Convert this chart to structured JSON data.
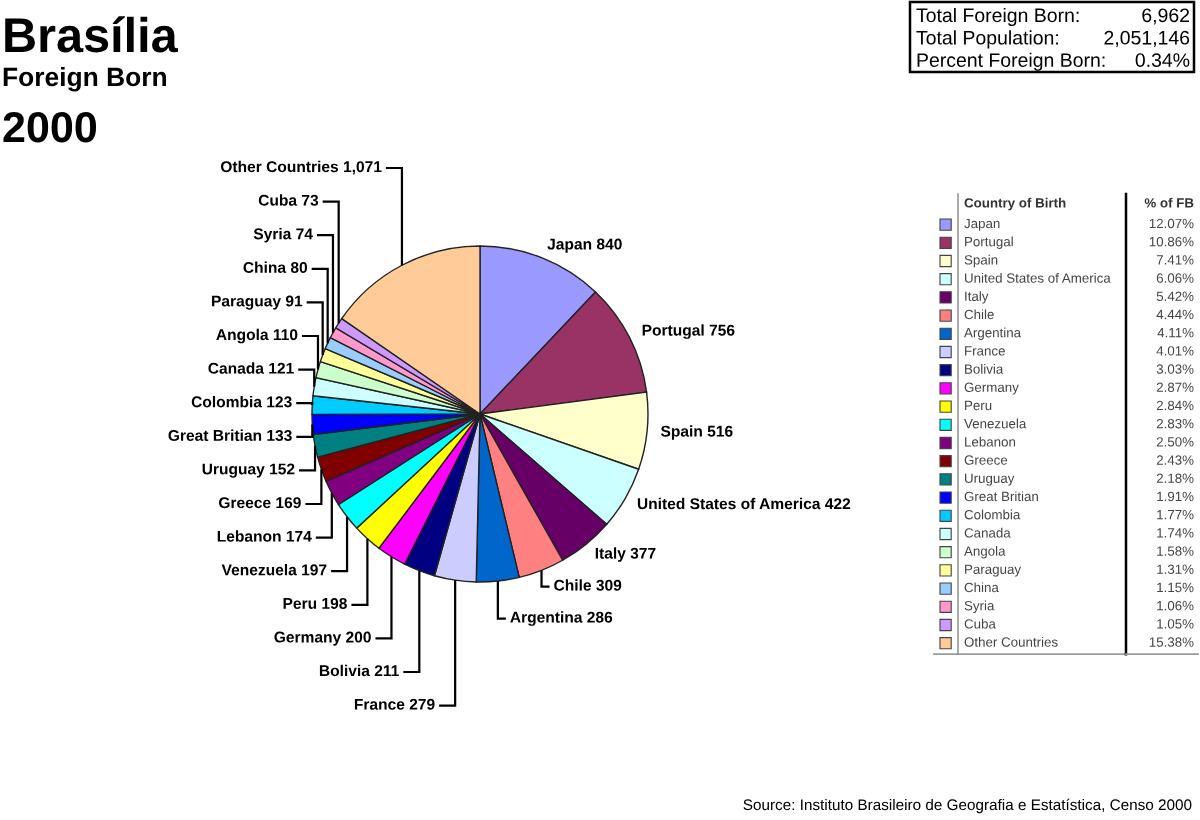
{
  "chart_data": [
    {
      "type": "pie",
      "title": "Brasília",
      "subtitle": "Foreign Born",
      "annotations": [
        "2000",
        "Total Foreign Born: 6,962",
        "Total Population: 2,051,146",
        "Percent Foreign Born: 0.34%",
        "Source: Instituto Brasileiro de Geografia e Estatística, Censo 2000"
      ],
      "categories": [
        "Japan",
        "Portugal",
        "Spain",
        "United States of America",
        "Italy",
        "Chile",
        "Argentina",
        "France",
        "Bolivia",
        "Germany",
        "Peru",
        "Venezuela",
        "Lebanon",
        "Greece",
        "Uruguay",
        "Great Britian",
        "Colombia",
        "Canada",
        "Angola",
        "Paraguay",
        "China",
        "Syria",
        "Cuba",
        "Other Countries"
      ],
      "values": [
        840,
        756,
        516,
        422,
        377,
        309,
        286,
        279,
        211,
        200,
        198,
        197,
        174,
        169,
        152,
        133,
        123,
        121,
        110,
        91,
        80,
        74,
        73,
        1071
      ],
      "value_labels": [
        "840",
        "756",
        "516",
        "422",
        "377",
        "309",
        "286",
        "279",
        "211",
        "200",
        "198",
        "197",
        "174",
        "169",
        "152",
        "133",
        "123",
        "121",
        "110",
        "91",
        "80",
        "74",
        "73",
        "1,071"
      ],
      "colors": [
        "#9999ff",
        "#993366",
        "#ffffcc",
        "#ccffff",
        "#660066",
        "#ff8080",
        "#0066cc",
        "#ccccff",
        "#000080",
        "#ff00ff",
        "#ffff00",
        "#00ffff",
        "#800080",
        "#800000",
        "#008080",
        "#0000ff",
        "#00ccff",
        "#ccffff",
        "#ccffcc",
        "#ffff99",
        "#99ccff",
        "#ff99cc",
        "#cc99ff",
        "#ffcc99"
      ],
      "legend": "right",
      "legend_title": "Country of Birth"
    },
    {
      "type": "other",
      "title": "% of FB",
      "annotations": [
        "12.07%",
        "10.86%",
        "7.41%",
        "6.06%",
        "5.42%",
        "4.44%",
        "4.11%",
        "4.01%",
        "3.03%",
        "2.87%",
        "2.84%",
        "2.83%",
        "2.50%",
        "2.43%",
        "2.18%",
        "1.91%",
        "1.77%",
        "1.74%",
        "1.58%",
        "1.31%",
        "1.15%",
        "1.06%",
        "1.05%",
        "15.38%"
      ]
    }
  ]
}
